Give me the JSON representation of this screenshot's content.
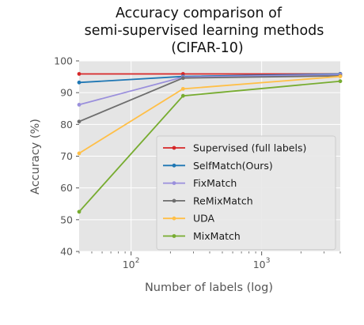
{
  "chart_data": {
    "type": "line",
    "title_lines": [
      "Accuracy comparison of",
      "semi-supervised learning methods",
      "(CIFAR-10)"
    ],
    "xlabel": "Number of labels (log)",
    "ylabel": "Accuracy (%)",
    "x_scale": "log",
    "xlim": [
      40,
      4000
    ],
    "ylim": [
      40,
      100
    ],
    "yticks": [
      40,
      50,
      60,
      70,
      80,
      90,
      100
    ],
    "xticks": [
      {
        "value": 100,
        "base": "10",
        "exp": "2"
      },
      {
        "value": 1000,
        "base": "10",
        "exp": "3"
      }
    ],
    "grid": true,
    "background": "#e5e5e5",
    "legend_position": "lower-right",
    "x": [
      40,
      250,
      4000
    ],
    "series": [
      {
        "name": "Supervised (full labels)",
        "color": "#d62728",
        "values": [
          95.9,
          95.9,
          95.9
        ]
      },
      {
        "name": "SelfMatch(Ours)",
        "color": "#1f77b4",
        "values": [
          93.2,
          95.1,
          95.9
        ]
      },
      {
        "name": "FixMatch",
        "color": "#9a8fdc",
        "values": [
          86.2,
          94.9,
          95.7
        ]
      },
      {
        "name": "ReMixMatch",
        "color": "#6e6e6e",
        "values": [
          80.9,
          94.6,
          95.3
        ]
      },
      {
        "name": "UDA",
        "color": "#ffbf47",
        "values": [
          70.9,
          91.2,
          95.1
        ]
      },
      {
        "name": "MixMatch",
        "color": "#77ac30",
        "values": [
          52.5,
          89.0,
          93.6
        ]
      }
    ]
  }
}
